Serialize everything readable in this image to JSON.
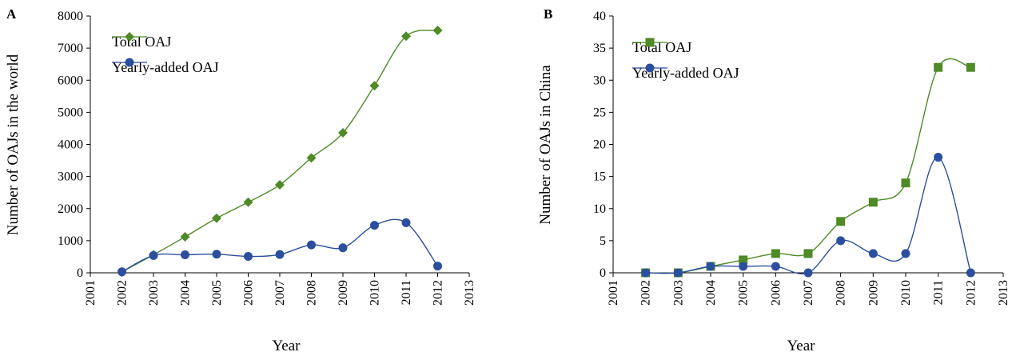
{
  "chart_data": [
    {
      "type": "line",
      "panel_label": "A",
      "xlabel": "Year",
      "ylabel": "Number of OAJs in the world",
      "xlim": [
        2001,
        2013
      ],
      "ylim": [
        0,
        8000
      ],
      "x_ticks": [
        "2001",
        "2002",
        "2003",
        "2004",
        "2005",
        "2006",
        "2007",
        "2008",
        "2009",
        "2010",
        "2011",
        "2012",
        "2013"
      ],
      "y_ticks": [
        "0",
        "1000",
        "2000",
        "3000",
        "4000",
        "5000",
        "6000",
        "7000",
        "8000"
      ],
      "legend_position": "top-left",
      "series": [
        {
          "name": "Total OAJ",
          "marker": "diamond",
          "color": "#4e8a26",
          "x": [
            2002,
            2003,
            2004,
            2005,
            2006,
            2007,
            2008,
            2009,
            2010,
            2011,
            2012
          ],
          "y": [
            30,
            560,
            1120,
            1700,
            2200,
            2740,
            3580,
            4360,
            5830,
            7370,
            7550
          ]
        },
        {
          "name": "Yearly-added OAJ",
          "marker": "circle",
          "color": "#2b4f9e",
          "x": [
            2002,
            2003,
            2004,
            2005,
            2006,
            2007,
            2008,
            2009,
            2010,
            2011,
            2012
          ],
          "y": [
            30,
            540,
            560,
            580,
            510,
            570,
            870,
            780,
            1480,
            1560,
            210
          ]
        }
      ]
    },
    {
      "type": "line",
      "panel_label": "B",
      "xlabel": "Year",
      "ylabel": "Number of OAJs in China",
      "xlim": [
        2001,
        2013
      ],
      "ylim": [
        0,
        40
      ],
      "x_ticks": [
        "2001",
        "2002",
        "2003",
        "2004",
        "2005",
        "2006",
        "2007",
        "2008",
        "2009",
        "2010",
        "2011",
        "2012",
        "2013"
      ],
      "y_ticks": [
        "0",
        "5",
        "10",
        "15",
        "20",
        "25",
        "30",
        "35",
        "40"
      ],
      "legend_position": "top-left",
      "series": [
        {
          "name": "Total OAJ",
          "marker": "square",
          "color": "#4e8a26",
          "x": [
            2002,
            2003,
            2004,
            2005,
            2006,
            2007,
            2008,
            2009,
            2010,
            2011,
            2012
          ],
          "y": [
            0,
            0,
            1,
            2,
            3,
            3,
            8,
            11,
            14,
            32,
            32
          ]
        },
        {
          "name": "Yearly-added OAJ",
          "marker": "circle",
          "color": "#2b4f9e",
          "x": [
            2002,
            2003,
            2004,
            2005,
            2006,
            2007,
            2008,
            2009,
            2010,
            2011,
            2012
          ],
          "y": [
            0,
            0,
            1,
            1,
            1,
            0,
            5,
            3,
            3,
            18,
            0
          ]
        }
      ]
    }
  ]
}
